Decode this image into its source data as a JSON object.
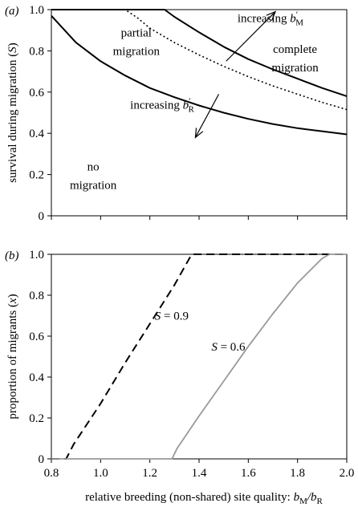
{
  "chart_data": [
    {
      "type": "line",
      "panel_label": "(a)",
      "ylabel": "survival during migration (S)",
      "xlabel": "",
      "xlim": [
        0.8,
        2.0
      ],
      "ylim": [
        0,
        1.0
      ],
      "xticks": [
        0.8,
        1.0,
        1.2,
        1.4,
        1.6,
        1.8,
        2.0
      ],
      "xtick_labels_shown": false,
      "yticks": [
        0,
        0.2,
        0.4,
        0.6,
        0.8,
        1.0
      ],
      "ytick_labels": [
        "0",
        "0.2",
        "0.4",
        "0.6",
        "0.8",
        "1.0"
      ],
      "series": [
        {
          "style": "solid",
          "x": [
            0.8,
            0.9,
            1.0,
            1.1,
            1.2,
            1.3,
            1.4,
            1.5,
            1.6,
            1.7,
            1.8,
            1.9,
            2.0
          ],
          "y": [
            0.97,
            0.84,
            0.75,
            0.68,
            0.62,
            0.575,
            0.535,
            0.5,
            0.47,
            0.445,
            0.425,
            0.41,
            0.395
          ]
        },
        {
          "style": "dotted",
          "x": [
            0.8,
            1.1,
            1.15,
            1.2,
            1.3,
            1.4,
            1.5,
            1.6,
            1.7,
            1.8,
            1.9,
            2.0
          ],
          "y": [
            1.0,
            1.0,
            0.96,
            0.91,
            0.84,
            0.78,
            0.725,
            0.675,
            0.63,
            0.59,
            0.55,
            0.515
          ]
        },
        {
          "style": "solid",
          "x": [
            0.8,
            1.26,
            1.3,
            1.4,
            1.5,
            1.6,
            1.7,
            1.8,
            1.9,
            2.0
          ],
          "y": [
            1.0,
            1.0,
            0.965,
            0.89,
            0.82,
            0.76,
            0.71,
            0.665,
            0.62,
            0.58
          ]
        }
      ],
      "annotations": [
        {
          "text": "partial",
          "x": 1.145,
          "y": 0.87
        },
        {
          "text": "migration",
          "x": 1.145,
          "y": 0.78
        },
        {
          "text": "complete",
          "x": 1.79,
          "y": 0.79
        },
        {
          "text": "migration",
          "x": 1.79,
          "y": 0.7
        },
        {
          "text": "no",
          "x": 0.97,
          "y": 0.22
        },
        {
          "text": "migration",
          "x": 0.97,
          "y": 0.13
        }
      ],
      "arrows": [
        {
          "label": "increasing",
          "subscript": "M",
          "from": [
            1.51,
            0.75
          ],
          "to": [
            1.71,
            0.99
          ],
          "label_x": 1.69,
          "label_y": 0.94
        },
        {
          "label": "increasing",
          "subscript": "R",
          "from": [
            1.48,
            0.59
          ],
          "to": [
            1.385,
            0.38
          ],
          "label_x": 1.25,
          "label_y": 0.52
        }
      ]
    },
    {
      "type": "line",
      "panel_label": "(b)",
      "ylabel": "proportion of migrants (x)",
      "xlabel": "relative breeding (non-shared) site quality: b",
      "xlabel_sub1": "M",
      "xlabel_mid": "/b",
      "xlabel_sub2": "R",
      "xlim": [
        0.8,
        2.0
      ],
      "ylim": [
        0,
        1.0
      ],
      "xticks": [
        0.8,
        1.0,
        1.2,
        1.4,
        1.6,
        1.8,
        2.0
      ],
      "xtick_labels": [
        "0.8",
        "1.0",
        "1.2",
        "1.4",
        "1.6",
        "1.8",
        "2.0"
      ],
      "yticks": [
        0,
        0.2,
        0.4,
        0.6,
        0.8,
        1.0
      ],
      "ytick_labels": [
        "0",
        "0.2",
        "0.4",
        "0.6",
        "0.8",
        "1.0"
      ],
      "series": [
        {
          "name": "S = 0.9",
          "style": "dashed",
          "color": "#000000",
          "x": [
            0.8,
            0.86,
            0.89,
            1.0,
            1.1,
            1.2,
            1.3,
            1.37,
            2.0
          ],
          "y": [
            0,
            0,
            0.07,
            0.27,
            0.47,
            0.66,
            0.85,
            1.0,
            1.0
          ]
        },
        {
          "name": "S = 0.6",
          "style": "solid",
          "color": "#999999",
          "x": [
            0.8,
            1.29,
            1.31,
            1.4,
            1.5,
            1.6,
            1.7,
            1.8,
            1.9,
            1.93,
            2.0
          ],
          "y": [
            0,
            0,
            0.05,
            0.21,
            0.38,
            0.55,
            0.71,
            0.86,
            0.98,
            1.0,
            1.0
          ]
        }
      ],
      "series_labels": [
        {
          "text": "S = 0.9",
          "x": 1.22,
          "y": 0.68
        },
        {
          "text": "S = 0.6",
          "x": 1.45,
          "y": 0.53
        }
      ]
    }
  ]
}
